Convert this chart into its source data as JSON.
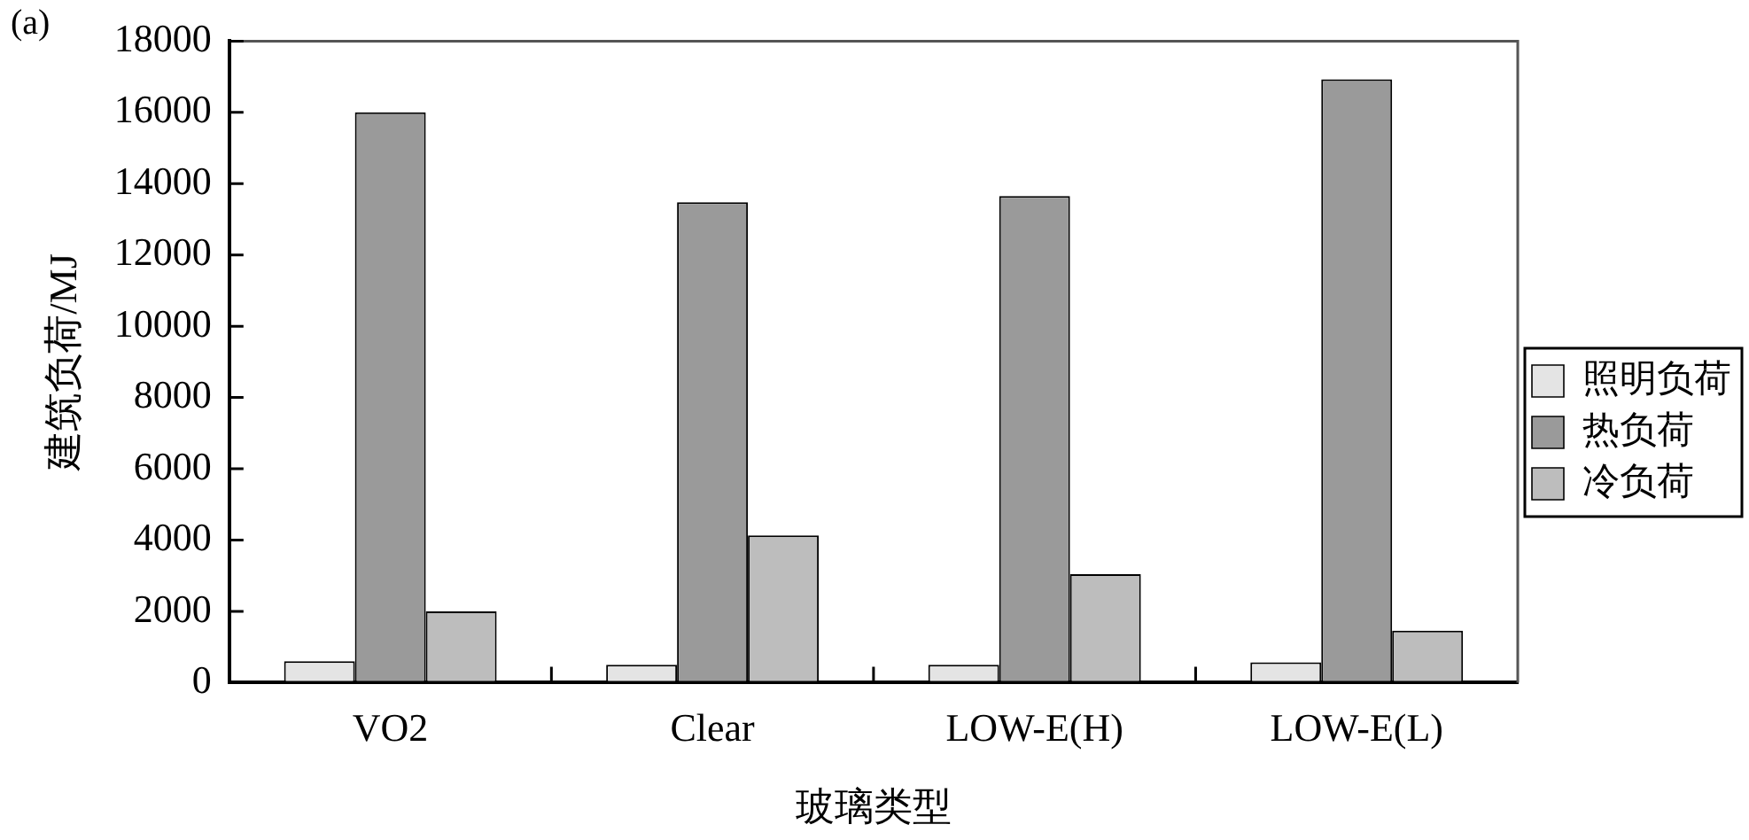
{
  "chart_data": {
    "type": "bar",
    "xlabel": "玻璃类型",
    "ylabel": "建筑负荷/MJ",
    "annotations": [
      "(a)"
    ],
    "categories": [
      "VO2",
      "Clear",
      "LOW-E(H)",
      "LOW-E(L)"
    ],
    "series": [
      {
        "name": "照明负荷",
        "color": "#e4e4e4",
        "values": [
          600,
          500,
          500,
          570
        ]
      },
      {
        "name": "热负荷",
        "color": "#9a9a9a",
        "values": [
          16000,
          13480,
          13650,
          16930
        ]
      },
      {
        "name": "冷负荷",
        "color": "#bdbdbd",
        "values": [
          2000,
          4130,
          3040,
          1460
        ]
      }
    ],
    "ylim": [
      0,
      18000
    ],
    "yticks": [
      0,
      2000,
      4000,
      6000,
      8000,
      10000,
      12000,
      14000,
      16000,
      18000
    ],
    "grid": false,
    "legend": "right"
  }
}
